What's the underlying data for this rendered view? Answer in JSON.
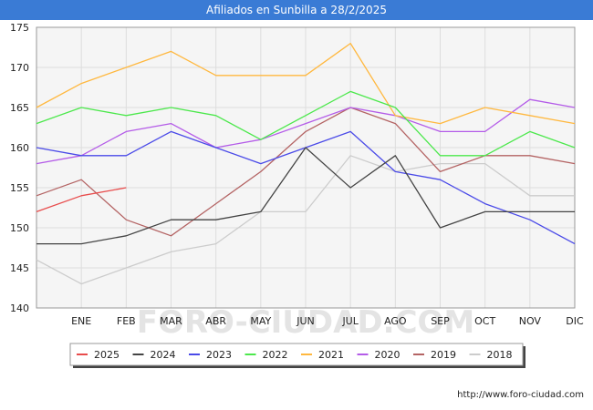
{
  "title": "Afiliados en Sunbilla a 28/2/2025",
  "source": "http://www.foro-ciudad.com",
  "watermark": "FORO-CIUDAD.COM",
  "chart_data": {
    "type": "line",
    "title": "Afiliados en Sunbilla a 28/2/2025",
    "xlabel": "",
    "ylabel": "",
    "ylim": [
      140,
      175
    ],
    "yticks": [
      140,
      145,
      150,
      155,
      160,
      165,
      170,
      175
    ],
    "x_tick_labels": [
      "ENE",
      "FEB",
      "MAR",
      "ABR",
      "MAY",
      "JUN",
      "JUL",
      "AGO",
      "SEP",
      "OCT",
      "NOV",
      "DIC"
    ],
    "grid": true,
    "legend_position": "bottom",
    "series": [
      {
        "name": "2025",
        "color": "#e84c4c",
        "values": [
          152,
          154,
          155
        ]
      },
      {
        "name": "2024",
        "color": "#444444",
        "values": [
          148,
          148,
          149,
          151,
          151,
          152,
          160,
          155,
          159,
          150,
          152,
          152,
          152
        ]
      },
      {
        "name": "2023",
        "color": "#4a4ae8",
        "values": [
          160,
          159,
          159,
          162,
          160,
          158,
          160,
          162,
          157,
          156,
          153,
          151,
          148
        ]
      },
      {
        "name": "2022",
        "color": "#4ce84c",
        "values": [
          163,
          165,
          164,
          165,
          164,
          161,
          164,
          167,
          165,
          159,
          159,
          162,
          160
        ]
      },
      {
        "name": "2021",
        "color": "#ffb83f",
        "values": [
          165,
          168,
          170,
          172,
          169,
          169,
          169,
          173,
          164,
          163,
          165,
          164,
          163
        ]
      },
      {
        "name": "2020",
        "color": "#b45ce8",
        "values": [
          158,
          159,
          162,
          163,
          160,
          161,
          163,
          165,
          164,
          162,
          162,
          166,
          165
        ]
      },
      {
        "name": "2019",
        "color": "#b46464",
        "values": [
          154,
          156,
          151,
          149,
          153,
          157,
          162,
          165,
          163,
          157,
          159,
          159,
          158
        ]
      },
      {
        "name": "2018",
        "color": "#cccccc",
        "values": [
          146,
          143,
          145,
          147,
          148,
          152,
          152,
          159,
          157,
          158,
          158,
          154,
          154
        ]
      }
    ]
  }
}
